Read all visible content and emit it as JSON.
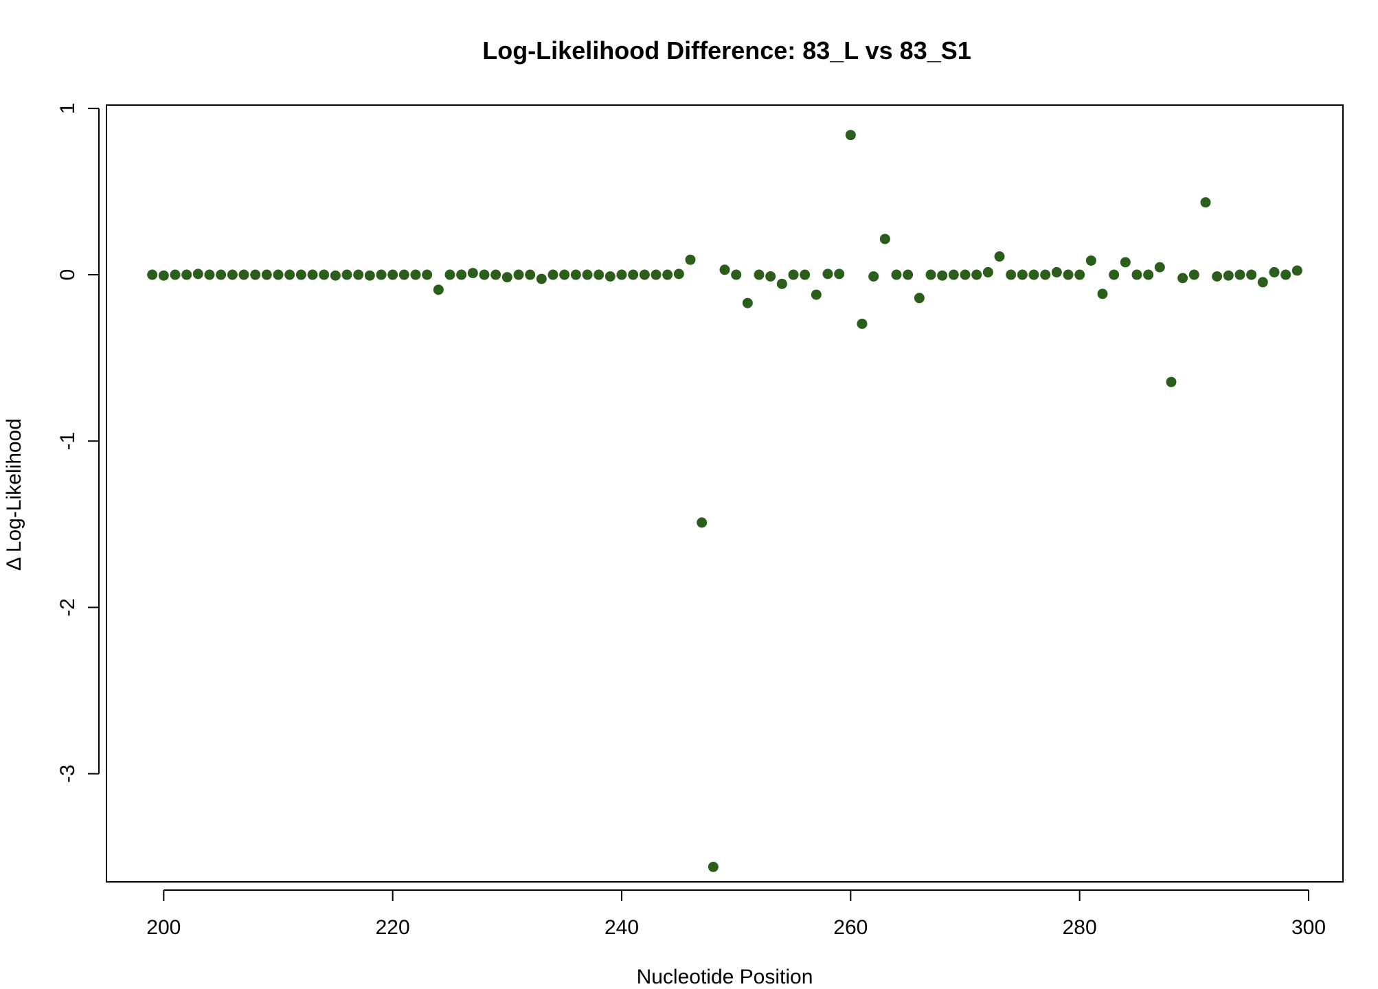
{
  "chart_data": {
    "type": "scatter",
    "title": "Log-Likelihood Difference: 83_L vs 83_S1",
    "xlabel": "Nucleotide Position",
    "ylabel": "Δ Log-Likelihood",
    "xlim": [
      195,
      303
    ],
    "ylim": [
      -3.65,
      1.02
    ],
    "x_ticks": [
      200,
      220,
      240,
      260,
      280,
      300
    ],
    "y_ticks": [
      -3,
      -2,
      -1,
      0,
      1
    ],
    "grid": false,
    "point_color": "#2a5e1a",
    "series": [
      {
        "x": [
          199,
          200,
          201,
          202,
          203,
          204,
          205,
          206,
          207,
          208,
          209,
          210,
          211,
          212,
          213,
          214,
          215,
          216,
          217,
          218,
          219,
          220,
          221,
          222,
          223,
          224,
          225,
          226,
          227,
          228,
          229,
          230,
          231,
          232,
          233,
          234,
          235,
          236,
          237,
          238,
          239,
          240,
          241,
          242,
          243,
          244,
          245,
          246,
          247,
          248,
          249,
          250,
          251,
          252,
          253,
          254,
          255,
          256,
          257,
          258,
          259,
          260,
          261,
          262,
          263,
          264,
          265,
          266,
          267,
          268,
          269,
          270,
          271,
          272,
          273,
          274,
          275,
          276,
          277,
          278,
          279,
          280,
          281,
          282,
          283,
          284,
          285,
          286,
          287,
          288,
          289,
          290,
          291,
          292,
          293,
          294,
          295,
          296,
          297,
          298,
          299
        ],
        "y": [
          0,
          -0.005,
          0,
          0,
          0.005,
          0,
          0,
          0,
          0,
          0,
          0,
          0,
          0,
          0,
          0,
          0,
          -0.005,
          0,
          0,
          -0.005,
          0,
          0,
          0,
          0,
          0,
          -0.09,
          0,
          0,
          0.01,
          0,
          0,
          -0.015,
          0,
          0,
          -0.025,
          0,
          0,
          0,
          0,
          0,
          -0.01,
          0,
          0,
          0,
          0,
          0,
          0.005,
          0.09,
          -1.49,
          -3.56,
          0.03,
          0,
          -0.17,
          0,
          -0.01,
          -0.055,
          0,
          0,
          -0.12,
          0.005,
          0.005,
          0.84,
          -0.295,
          -0.01,
          0.215,
          0,
          0,
          -0.14,
          0,
          -0.005,
          0,
          0,
          0,
          0.015,
          0.11,
          0,
          0,
          0,
          0,
          0.015,
          0,
          0,
          0.085,
          -0.115,
          0,
          0.075,
          0,
          0,
          0.045,
          -0.645,
          -0.02,
          0,
          0.435,
          -0.01,
          -0.005,
          0,
          0,
          -0.045,
          0.015,
          0,
          0.025
        ]
      }
    ]
  }
}
